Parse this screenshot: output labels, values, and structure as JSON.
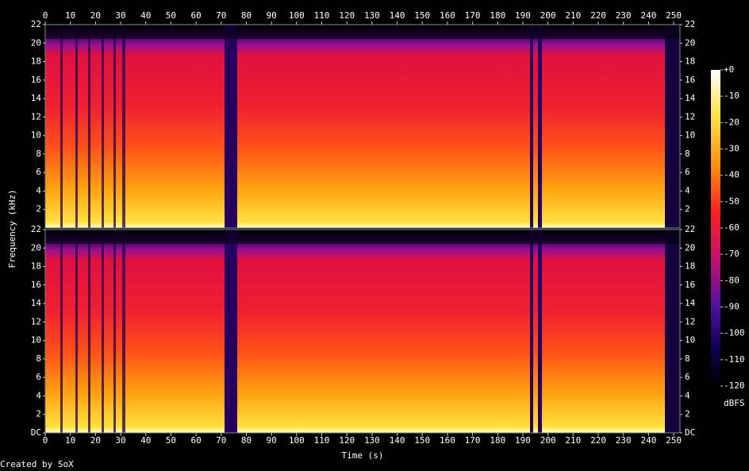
{
  "chart_data": {
    "type": "spectrogram",
    "x_label": "Time (s)",
    "y_label": "Frequency (kHz)",
    "xlim": [
      0,
      252.5
    ],
    "xticks": [
      0,
      10,
      20,
      30,
      40,
      50,
      60,
      70,
      80,
      90,
      100,
      110,
      120,
      130,
      140,
      150,
      160,
      170,
      180,
      190,
      200,
      210,
      220,
      230,
      240,
      250
    ],
    "channels": [
      {
        "ylim": [
          0,
          22
        ],
        "yticks": [
          2,
          4,
          6,
          8,
          10,
          12,
          14,
          16,
          18,
          20,
          22
        ]
      },
      {
        "ylim": [
          0,
          22
        ],
        "yticks": [
          {
            "value": 0,
            "label": "DC"
          },
          2,
          4,
          6,
          8,
          10,
          12,
          14,
          16,
          18,
          20,
          22
        ]
      }
    ],
    "colorbar": {
      "label": "dBFS",
      "zlim": [
        -120,
        0
      ],
      "ticks": [
        {
          "value": 0,
          "label": "+0"
        },
        -10,
        -20,
        -30,
        -40,
        -50,
        -60,
        -70,
        -80,
        -90,
        -100,
        -110,
        -120
      ]
    },
    "footer": "Created by SoX"
  }
}
